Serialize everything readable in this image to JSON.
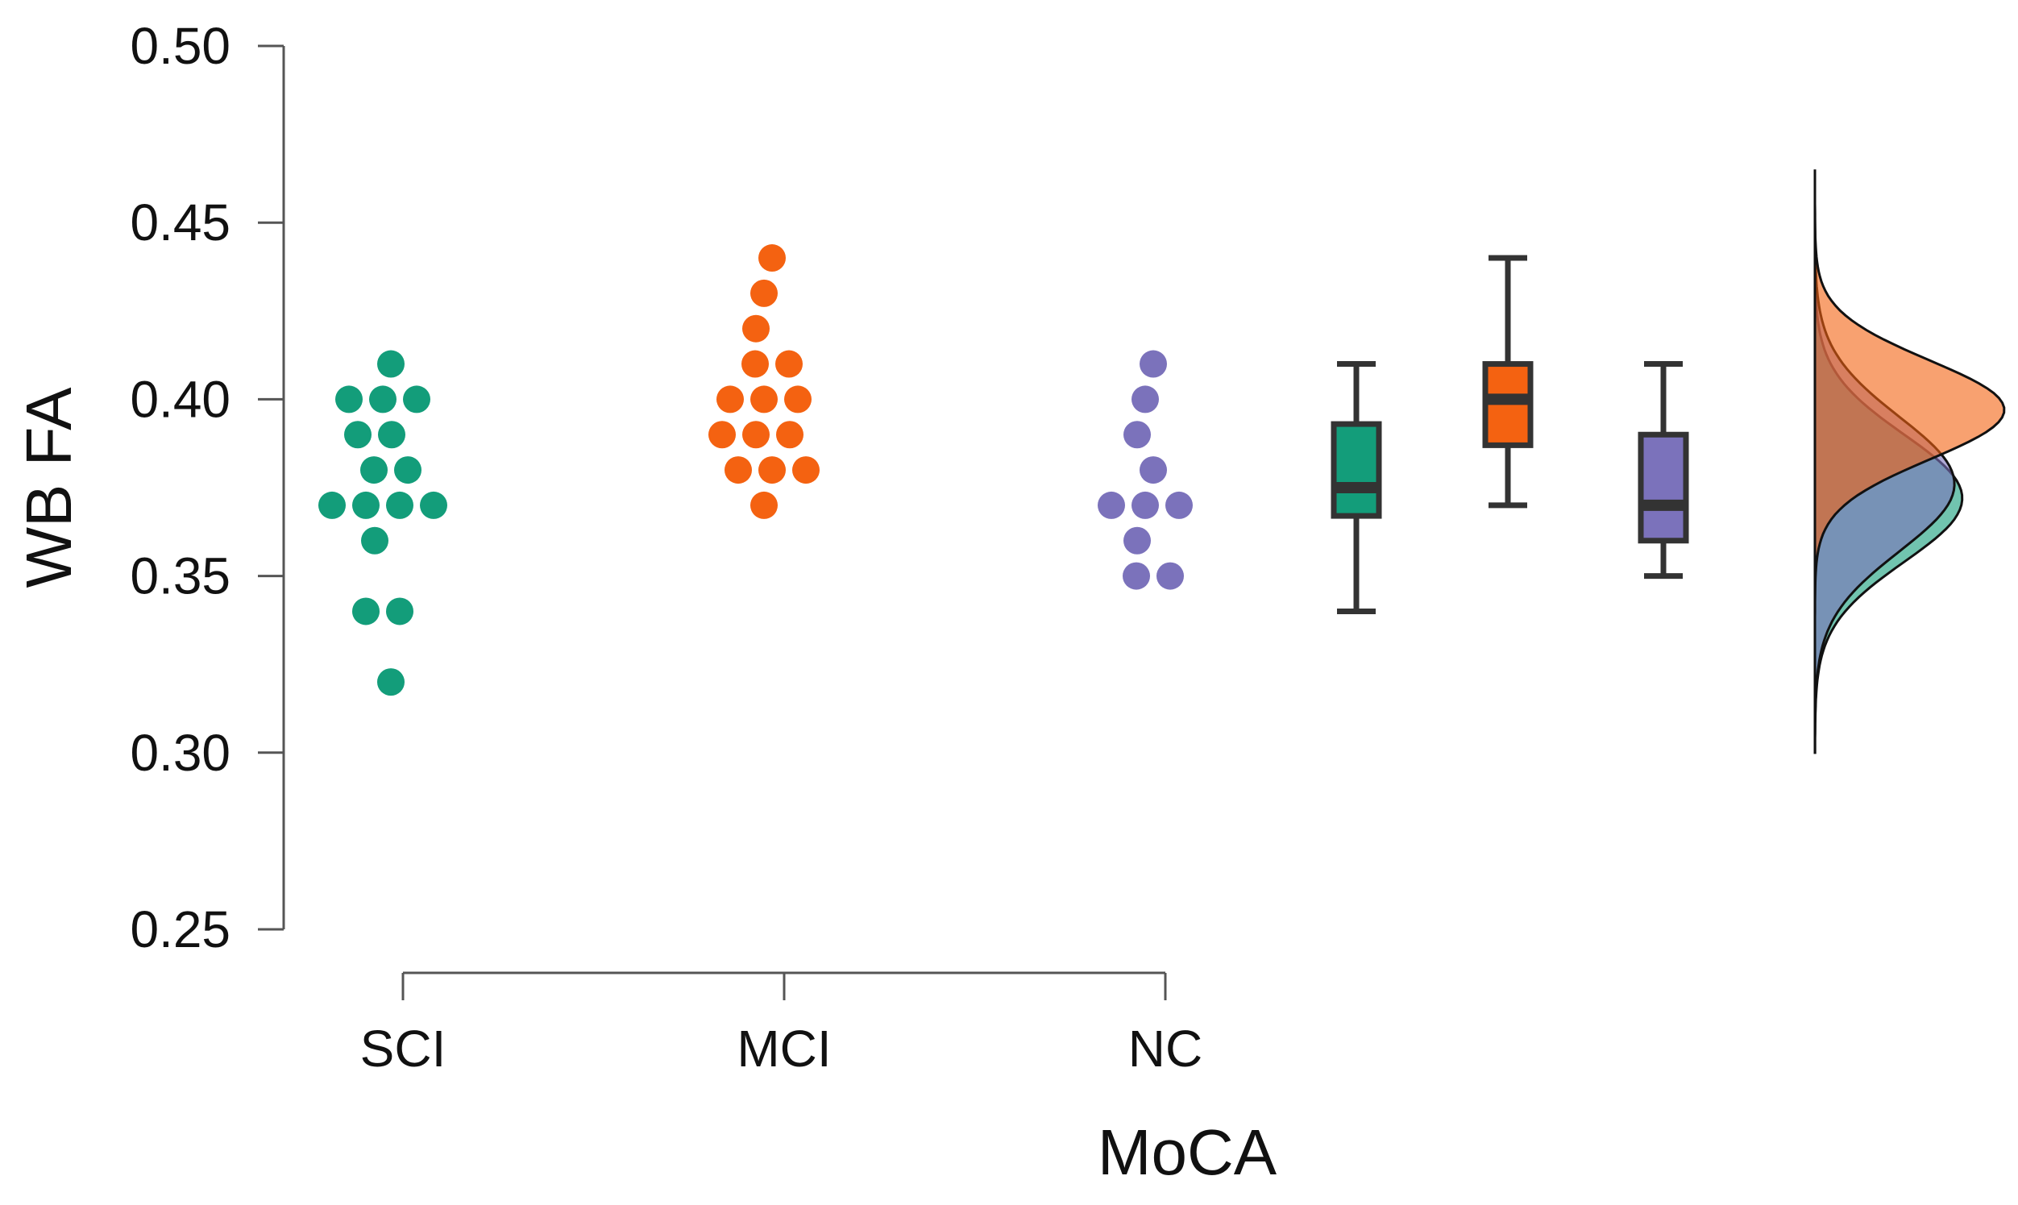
{
  "chart_data": {
    "type": "raincloud",
    "title": "",
    "xlabel": "MoCA",
    "ylabel": "WB FA",
    "ylim": [
      0.25,
      0.5
    ],
    "yticks": [
      0.25,
      0.3,
      0.35,
      0.4,
      0.45,
      0.5
    ],
    "ytick_labels": [
      "0.25",
      "0.30",
      "0.35",
      "0.40",
      "0.45",
      "0.50"
    ],
    "categories": [
      "SCI",
      "MCI",
      "NC"
    ],
    "groups": [
      {
        "name": "SCI",
        "color": "#139d7a",
        "points": [
          0.41,
          0.4,
          0.4,
          0.4,
          0.39,
          0.39,
          0.38,
          0.38,
          0.37,
          0.37,
          0.37,
          0.37,
          0.36,
          0.34,
          0.34,
          0.32
        ],
        "box": {
          "min": 0.34,
          "q1": 0.367,
          "median": 0.375,
          "q3": 0.393,
          "max": 0.41
        }
      },
      {
        "name": "MCI",
        "color": "#f46211",
        "points": [
          0.44,
          0.43,
          0.42,
          0.41,
          0.41,
          0.4,
          0.4,
          0.4,
          0.39,
          0.39,
          0.39,
          0.38,
          0.38,
          0.38,
          0.37
        ],
        "box": {
          "min": 0.37,
          "q1": 0.387,
          "median": 0.4,
          "q3": 0.41,
          "max": 0.44
        }
      },
      {
        "name": "NC",
        "color": "#7b72bb",
        "points": [
          0.41,
          0.4,
          0.39,
          0.38,
          0.37,
          0.37,
          0.37,
          0.36,
          0.35,
          0.35
        ],
        "box": {
          "min": 0.35,
          "q1": 0.36,
          "median": 0.37,
          "q3": 0.39,
          "max": 0.41
        }
      }
    ],
    "density": {
      "orientation": "right",
      "y_range": [
        0.3,
        0.465
      ],
      "series": [
        {
          "name": "SCI",
          "color": "#139d7a",
          "mean": 0.372,
          "sd": 0.018
        },
        {
          "name": "MCI",
          "color": "#f46211",
          "mean": 0.397,
          "sd": 0.014
        },
        {
          "name": "NC",
          "color": "#7b72bb",
          "mean": 0.376,
          "sd": 0.019
        }
      ]
    }
  }
}
